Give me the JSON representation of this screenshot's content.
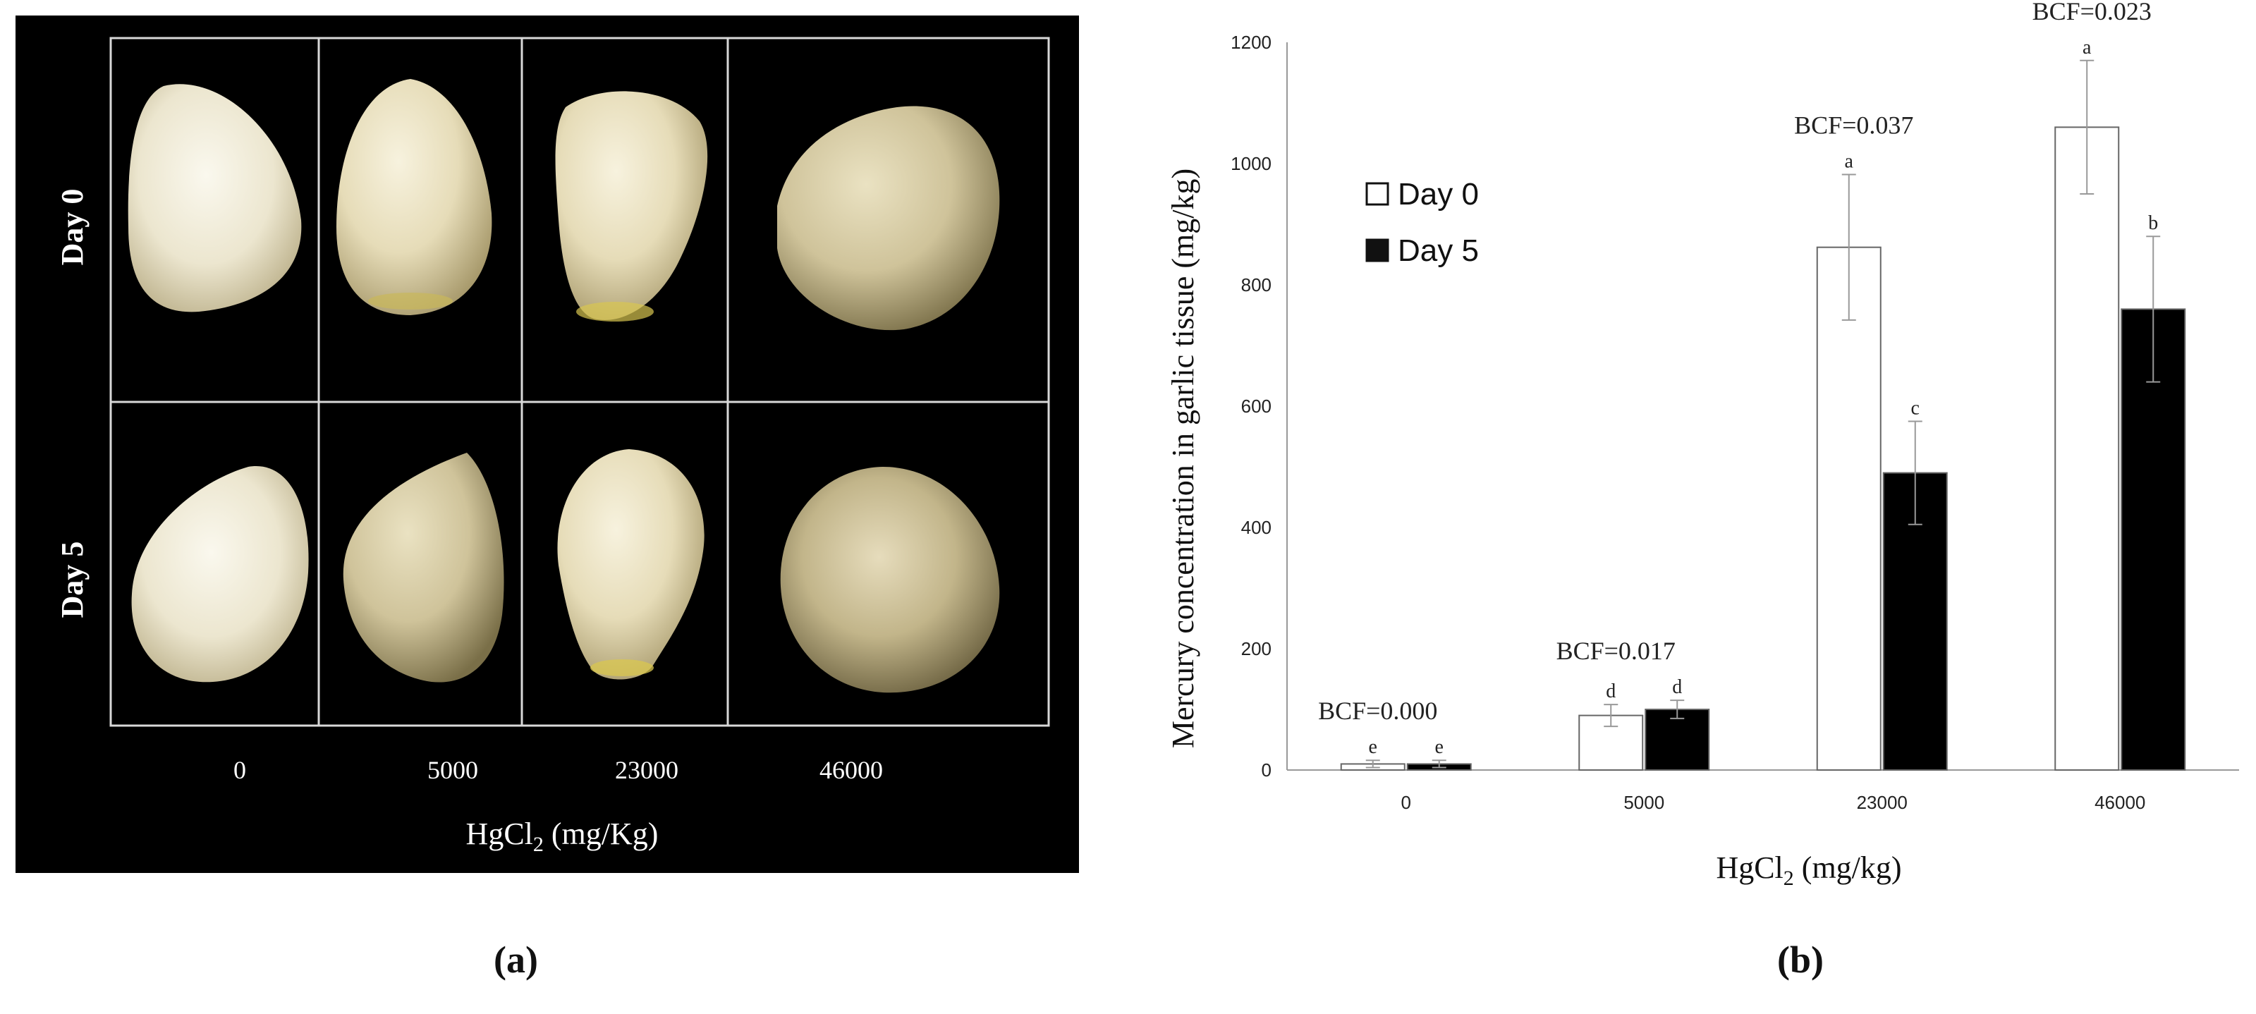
{
  "panel_a": {
    "rows": [
      "Day 0",
      "Day 5"
    ],
    "columns": [
      "0",
      "5000",
      "23000",
      "46000"
    ],
    "xlabel_main": "HgCl",
    "xlabel_sub": "2",
    "xlabel_unit": " (mg/Kg)",
    "caption": "(a)"
  },
  "panel_b": {
    "caption": "(b)"
  },
  "chart_data": {
    "type": "bar",
    "categories": [
      "0",
      "5000",
      "23000",
      "46000"
    ],
    "series": [
      {
        "name": "Day 0",
        "values": [
          10,
          90,
          862,
          1060
        ],
        "errors": [
          6,
          18,
          120,
          110
        ],
        "letters": [
          "e",
          "d",
          "a",
          "a"
        ],
        "color": "#ffffff"
      },
      {
        "name": "Day 5",
        "values": [
          10,
          100,
          490,
          760
        ],
        "errors": [
          6,
          15,
          85,
          120
        ],
        "letters": [
          "e",
          "d",
          "c",
          "b"
        ],
        "color": "#000000"
      }
    ],
    "annotations": [
      "BCF=0.000",
      "BCF=0.017",
      "BCF=0.037",
      "BCF=0.023"
    ],
    "xlabel_main": "HgCl",
    "xlabel_sub": "2",
    "xlabel_unit": "  (mg/kg)",
    "ylabel": "Mercury concentration in garlic tissue  (mg/kg)",
    "yticks": [
      0,
      200,
      400,
      600,
      800,
      1000,
      1200
    ],
    "ylim": [
      0,
      1200
    ],
    "grid": false,
    "legend_position": "top-left"
  }
}
